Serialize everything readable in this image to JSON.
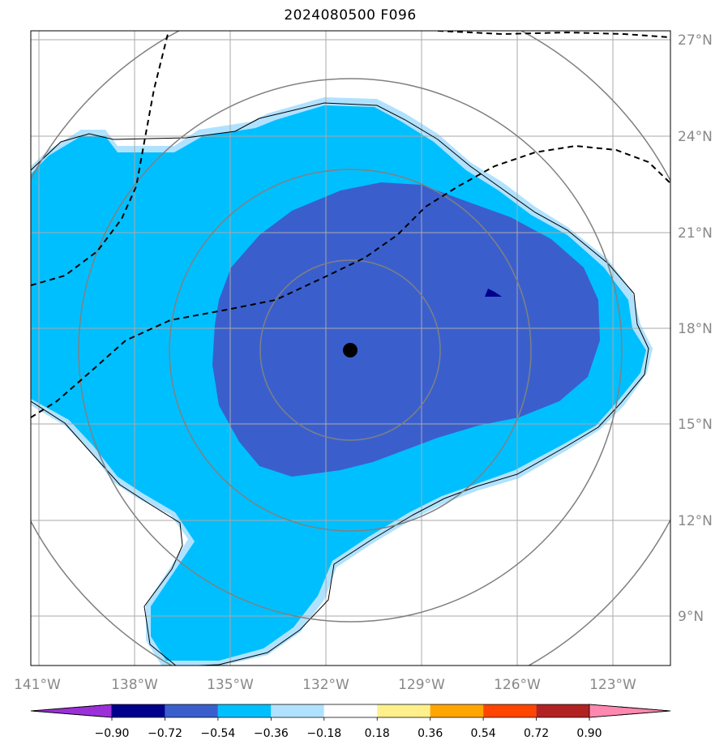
{
  "title": "2024080500 F096",
  "lat_labels": [
    "27°N",
    "24°N",
    "21°N",
    "18°N",
    "15°N",
    "12°N",
    "9°N"
  ],
  "lon_labels": [
    "141°W",
    "138°W",
    "135°W",
    "132°W",
    "129°W",
    "126°W",
    "123°W"
  ],
  "colorbar": {
    "ticks": [
      "−0.90",
      "−0.72",
      "−0.54",
      "−0.36",
      "−0.18",
      "0.18",
      "0.36",
      "0.54",
      "0.72",
      "0.90"
    ],
    "colors": [
      "#9b30d9",
      "#00008b",
      "#3a5fcd",
      "#00bfff",
      "#b0e2ff",
      "#ffffff",
      "#fff08c",
      "#ffa500",
      "#ff4500",
      "#b22222",
      "#ff88b0"
    ]
  },
  "colors": {
    "light_blue": "#b0e2ff",
    "deep_sky_blue": "#00bfff",
    "royal_blue": "#3a5fcd",
    "navy": "#00008b",
    "grid": "#aaaaaa",
    "rings": "#808080"
  },
  "center_marker": "storm-center-dot"
}
